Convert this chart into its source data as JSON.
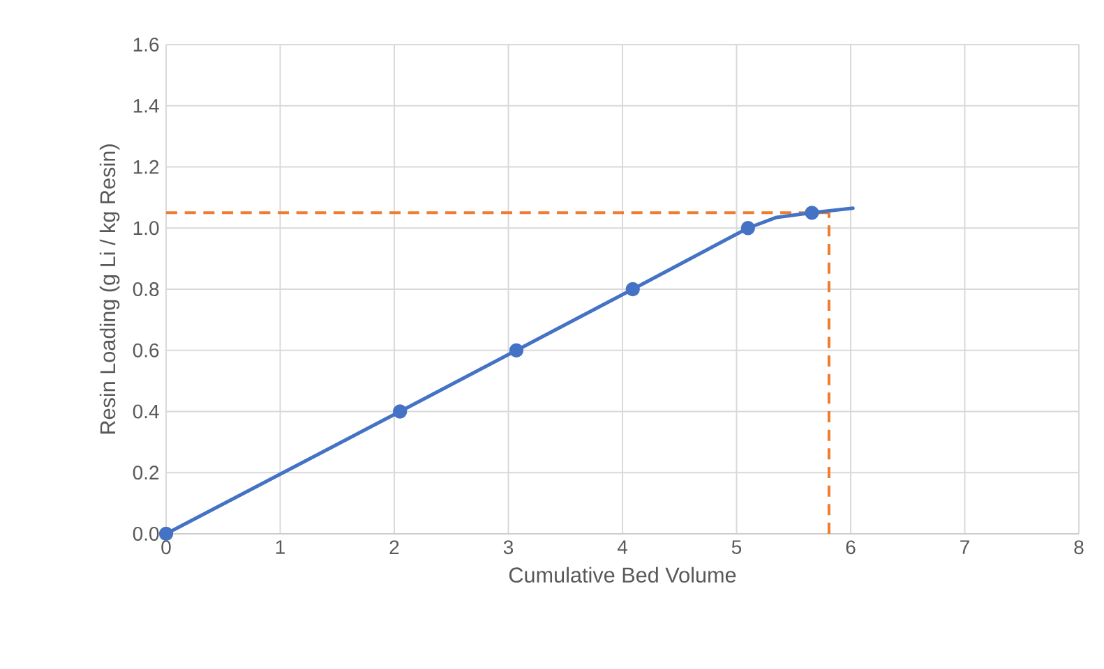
{
  "chart_data": {
    "type": "line",
    "xlabel": "Cumulative Bed Volume",
    "ylabel": "Resin Loading (g Li / kg Resin)",
    "xlim": [
      0,
      8
    ],
    "ylim": [
      0,
      1.6
    ],
    "xticks": [
      0,
      1,
      2,
      3,
      4,
      5,
      6,
      7,
      8
    ],
    "yticks": [
      {
        "value": 0,
        "label": "0.0"
      },
      {
        "value": 0.2,
        "label": "0.2"
      },
      {
        "value": 0.4,
        "label": "0.4"
      },
      {
        "value": 0.6,
        "label": "0.6"
      },
      {
        "value": 0.8,
        "label": "0.8"
      },
      {
        "value": 1.0,
        "label": "1.0"
      },
      {
        "value": 1.2,
        "label": "1.2"
      },
      {
        "value": 1.4,
        "label": "1.4"
      },
      {
        "value": 1.6,
        "label": "1.6"
      }
    ],
    "grid": true,
    "series": [
      {
        "color": "#4472c4",
        "marker": "none",
        "x": [
          0,
          2.05,
          3.07,
          4.09,
          5.1,
          5.35,
          5.66,
          6.02
        ],
        "values": [
          0,
          0.4,
          0.6,
          0.8,
          1.0,
          1.035,
          1.05,
          1.065
        ]
      },
      {
        "type": "scatter",
        "color": "#4472c4",
        "marker": "circle",
        "x": [
          0,
          2.05,
          3.07,
          4.09,
          5.1,
          5.66
        ],
        "values": [
          0,
          0.4,
          0.6,
          0.8,
          1.0,
          1.05
        ]
      }
    ],
    "ref_lines": [
      {
        "axis": "y",
        "value": 1.05,
        "color": "#ed7d31",
        "line_style": "dashed"
      },
      {
        "axis": "x",
        "value": 5.81,
        "color": "#ed7d31",
        "line_style": "dashed"
      }
    ]
  }
}
